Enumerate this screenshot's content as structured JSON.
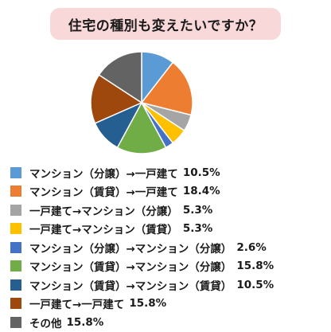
{
  "title": "住宅の種別も変えたいですか？",
  "chart_data": {
    "type": "pie",
    "title": "住宅の種別も変えたいですか？",
    "unit": "%",
    "slices": [
      {
        "label": "マンション（分譲）→一戸建て",
        "value": 10.5,
        "value_text": "10.5%",
        "color": "#5b9bd5"
      },
      {
        "label": "マンション（賃貸）→一戸建て",
        "value": 18.4,
        "value_text": "18.4%",
        "color": "#ed7d31"
      },
      {
        "label": "一戸建て→マンション（分譲）",
        "value": 5.3,
        "value_text": "5.3%",
        "color": "#a5a5a5"
      },
      {
        "label": "一戸建て→マンション（賃貸）",
        "value": 5.3,
        "value_text": "5.3%",
        "color": "#ffc000"
      },
      {
        "label": "マンション（分譲）→マンション（分譲）",
        "value": 2.6,
        "value_text": "2.6%",
        "color": "#4472c4"
      },
      {
        "label": "マンション（賃貸）→マンション（分譲）",
        "value": 15.8,
        "value_text": "15.8%",
        "color": "#70ad47"
      },
      {
        "label": "マンション（賃貸）→マンション（賃貸）",
        "value": 10.5,
        "value_text": "10.5%",
        "color": "#255e91"
      },
      {
        "label": "一戸建て→一戸建て",
        "value": 15.8,
        "value_text": "15.8%",
        "color": "#9e480e"
      },
      {
        "label": "その他",
        "value": 15.8,
        "value_text": "15.8%",
        "color": "#636363"
      }
    ],
    "start_angle_deg": 0,
    "direction": "clockwise",
    "legend": "bottom"
  }
}
